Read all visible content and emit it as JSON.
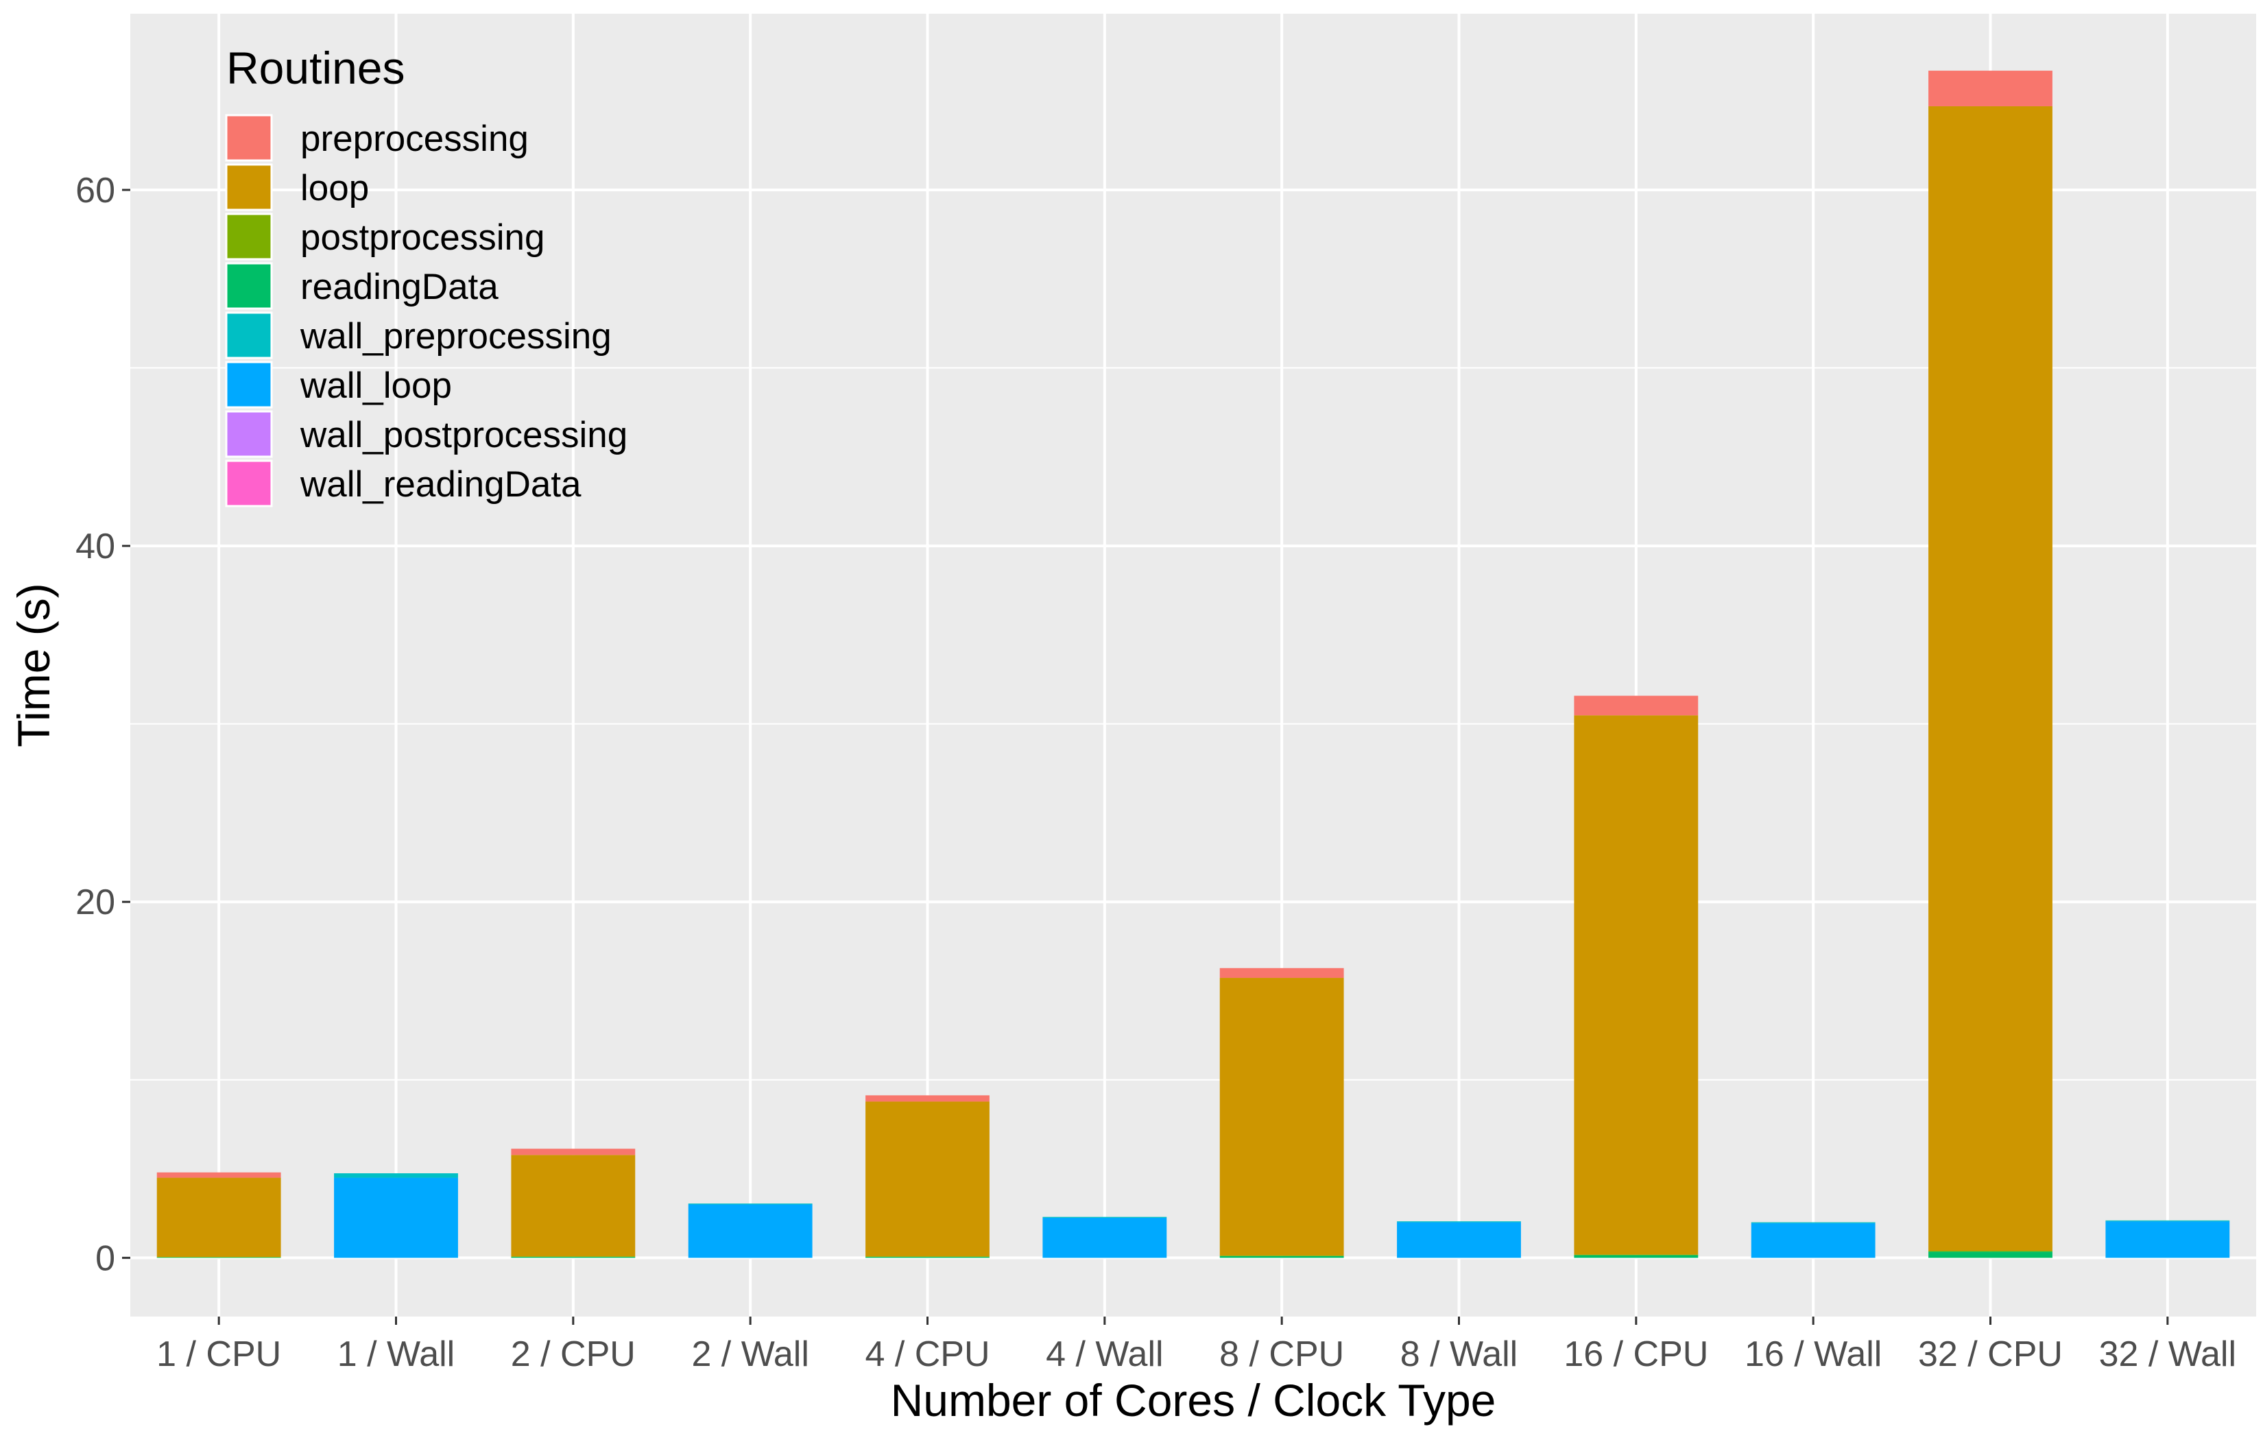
{
  "chart_data": {
    "type": "bar",
    "stacked": true,
    "xlabel": "Number of Cores / Clock Type",
    "ylabel": "Time (s)",
    "ylim": [
      -3.3,
      69.9
    ],
    "yticks": [
      0,
      20,
      40,
      60
    ],
    "grid": true,
    "legend": {
      "title": "Routines",
      "position": "top-left inside"
    },
    "categories": [
      "1 / CPU",
      "1 / Wall",
      "2 / CPU",
      "2 / Wall",
      "4 / CPU",
      "4 / Wall",
      "8 / CPU",
      "8 / Wall",
      "16 / CPU",
      "16 / Wall",
      "32 / CPU",
      "32 / Wall"
    ],
    "series": [
      {
        "name": "preprocessing",
        "color": "#F8766D",
        "values": [
          0.3,
          0,
          0.35,
          0,
          0.35,
          0,
          0.55,
          0,
          1.1,
          0,
          2.0,
          0
        ]
      },
      {
        "name": "loop",
        "color": "#CD9600",
        "values": [
          4.45,
          0,
          5.7,
          0,
          8.7,
          0,
          15.6,
          0,
          30.3,
          0,
          64.3,
          0
        ]
      },
      {
        "name": "postprocessing",
        "color": "#7CAE00",
        "values": [
          0.02,
          0,
          0.03,
          0,
          0.03,
          0,
          0.03,
          0,
          0.03,
          0,
          0.05,
          0
        ]
      },
      {
        "name": "readingData",
        "color": "#00BE67",
        "values": [
          0.03,
          0,
          0.05,
          0,
          0.05,
          0,
          0.1,
          0,
          0.15,
          0,
          0.35,
          0
        ]
      },
      {
        "name": "wall_preprocessing",
        "color": "#00BFC4",
        "values": [
          0,
          0.25,
          0,
          0.05,
          0,
          0.05,
          0,
          0.05,
          0,
          0.05,
          0,
          0.05
        ]
      },
      {
        "name": "wall_loop",
        "color": "#00A9FF",
        "values": [
          0,
          4.5,
          0,
          3.0,
          0,
          2.25,
          0,
          2.0,
          0,
          1.95,
          0,
          2.05
        ]
      },
      {
        "name": "wall_postprocessing",
        "color": "#C77CFF",
        "values": [
          0,
          0,
          0,
          0,
          0,
          0,
          0,
          0,
          0,
          0,
          0,
          0
        ]
      },
      {
        "name": "wall_readingData",
        "color": "#FF61CC",
        "values": [
          0,
          0,
          0,
          0,
          0,
          0,
          0,
          0,
          0,
          0,
          0,
          0
        ]
      }
    ]
  }
}
